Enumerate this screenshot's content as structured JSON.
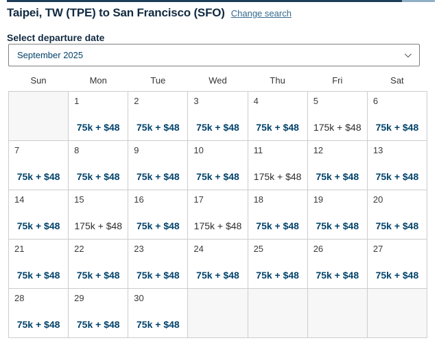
{
  "header": {
    "title": "Taipei, TW (TPE) to San Francisco (SFO)",
    "change_search_label": "Change search"
  },
  "date_selector": {
    "label": "Select departure date",
    "value": "September 2025"
  },
  "calendar": {
    "weekdays": [
      "Sun",
      "Mon",
      "Tue",
      "Wed",
      "Thu",
      "Fri",
      "Sat"
    ],
    "weeks": [
      [
        {
          "day": "",
          "price": "",
          "saver": false
        },
        {
          "day": "1",
          "price": "75k + $48",
          "saver": true
        },
        {
          "day": "2",
          "price": "75k + $48",
          "saver": true
        },
        {
          "day": "3",
          "price": "75k + $48",
          "saver": true
        },
        {
          "day": "4",
          "price": "75k + $48",
          "saver": true
        },
        {
          "day": "5",
          "price": "175k + $48",
          "saver": false
        },
        {
          "day": "6",
          "price": "75k + $48",
          "saver": true
        }
      ],
      [
        {
          "day": "7",
          "price": "75k + $48",
          "saver": true
        },
        {
          "day": "8",
          "price": "75k + $48",
          "saver": true
        },
        {
          "day": "9",
          "price": "75k + $48",
          "saver": true
        },
        {
          "day": "10",
          "price": "75k + $48",
          "saver": true
        },
        {
          "day": "11",
          "price": "175k + $48",
          "saver": false
        },
        {
          "day": "12",
          "price": "75k + $48",
          "saver": true
        },
        {
          "day": "13",
          "price": "75k + $48",
          "saver": true
        }
      ],
      [
        {
          "day": "14",
          "price": "75k + $48",
          "saver": true
        },
        {
          "day": "15",
          "price": "175k + $48",
          "saver": false
        },
        {
          "day": "16",
          "price": "75k + $48",
          "saver": true
        },
        {
          "day": "17",
          "price": "175k + $48",
          "saver": false
        },
        {
          "day": "18",
          "price": "75k + $48",
          "saver": true
        },
        {
          "day": "19",
          "price": "75k + $48",
          "saver": true
        },
        {
          "day": "20",
          "price": "75k + $48",
          "saver": true
        }
      ],
      [
        {
          "day": "21",
          "price": "75k + $48",
          "saver": true
        },
        {
          "day": "22",
          "price": "75k + $48",
          "saver": true
        },
        {
          "day": "23",
          "price": "75k + $48",
          "saver": true
        },
        {
          "day": "24",
          "price": "75k + $48",
          "saver": true
        },
        {
          "day": "25",
          "price": "75k + $48",
          "saver": true
        },
        {
          "day": "26",
          "price": "75k + $48",
          "saver": true
        },
        {
          "day": "27",
          "price": "75k + $48",
          "saver": true
        }
      ],
      [
        {
          "day": "28",
          "price": "75k + $48",
          "saver": true
        },
        {
          "day": "29",
          "price": "75k + $48",
          "saver": true
        },
        {
          "day": "30",
          "price": "75k + $48",
          "saver": true
        },
        {
          "day": "",
          "price": "",
          "saver": false
        },
        {
          "day": "",
          "price": "",
          "saver": false
        },
        {
          "day": "",
          "price": "",
          "saver": false
        },
        {
          "day": "",
          "price": "",
          "saver": false
        }
      ]
    ]
  },
  "colors": {
    "title_navy": "#112a41",
    "award_price_navy": "#01426a",
    "standard_price": "#2d2d2d",
    "link_blue": "#33698c",
    "grid_border": "#cccccc",
    "empty_cell_bg": "#f7f7f7",
    "top_bar_dark": "#1d3d58",
    "top_bar_light": "#8fafc4"
  }
}
